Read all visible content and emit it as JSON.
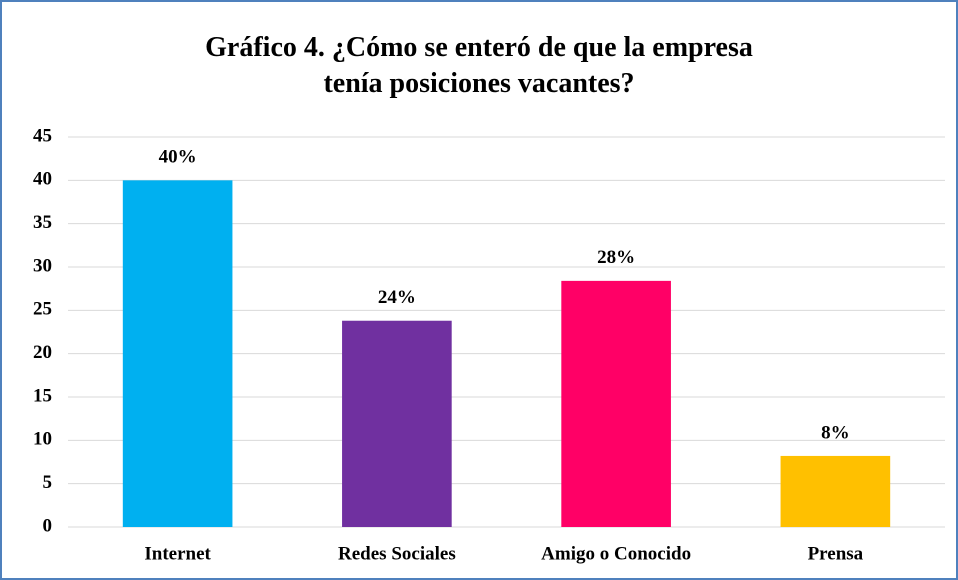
{
  "chart_data": {
    "type": "bar",
    "title": "Gráfico 4. ¿Cómo se enteró de que la empresa tenía posiciones vacantes?",
    "categories": [
      "Internet",
      "Redes Sociales",
      "Amigo o Conocido",
      "Prensa"
    ],
    "values": [
      40,
      23.8,
      28.4,
      8.2
    ],
    "value_labels": [
      "40%",
      "24%",
      "28%",
      "8%"
    ],
    "colors": [
      "#00b0f0",
      "#7030a0",
      "#ff0066",
      "#ffc000"
    ],
    "ylim": [
      0,
      45
    ],
    "yticks": [
      0,
      5,
      10,
      15,
      20,
      25,
      30,
      35,
      40,
      45
    ],
    "grid": true
  }
}
